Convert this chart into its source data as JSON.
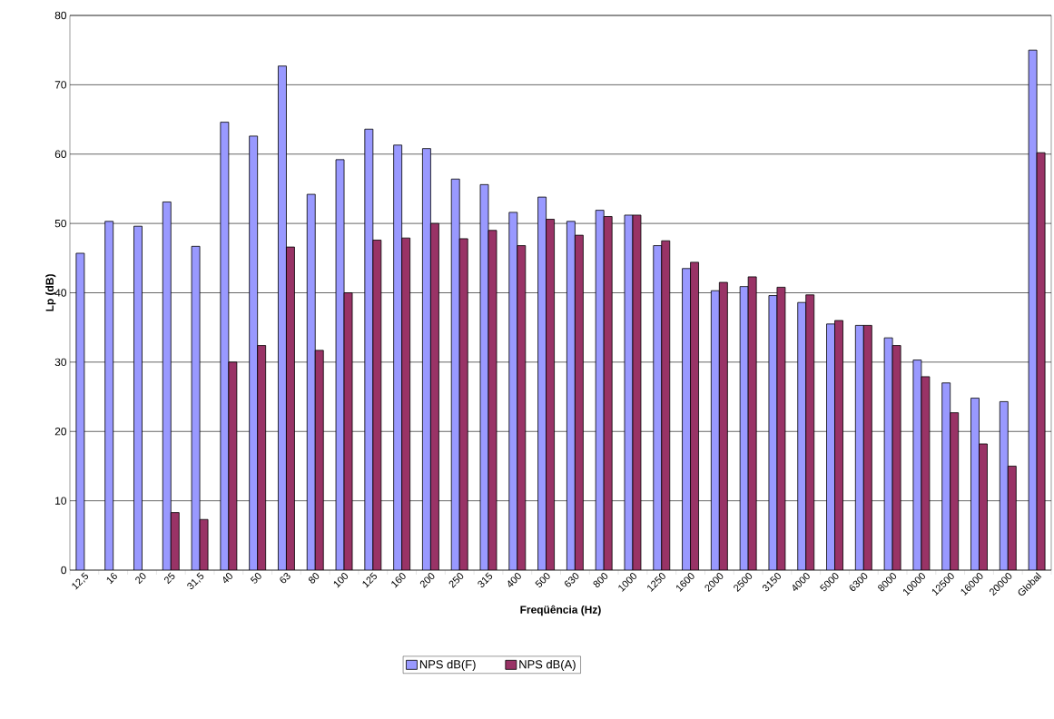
{
  "chart_data": {
    "type": "bar",
    "xlabel": "Freqüência (Hz)",
    "ylabel": "Lp (dB)",
    "categories": [
      "12,5",
      "16",
      "20",
      "25",
      "31,5",
      "40",
      "50",
      "63",
      "80",
      "100",
      "125",
      "160",
      "200",
      "250",
      "315",
      "400",
      "500",
      "630",
      "800",
      "1000",
      "1250",
      "1600",
      "2000",
      "2500",
      "3150",
      "4000",
      "5000",
      "6300",
      "8000",
      "10000",
      "12500",
      "16000",
      "20000",
      "Global"
    ],
    "series": [
      {
        "name": "NPS dB(F)",
        "color": "#9999ff",
        "values": [
          45.7,
          50.3,
          49.6,
          53.1,
          46.7,
          64.6,
          62.6,
          72.7,
          54.2,
          59.2,
          63.6,
          61.3,
          60.8,
          56.4,
          55.6,
          51.6,
          53.8,
          50.3,
          51.9,
          51.2,
          46.8,
          43.5,
          40.3,
          40.9,
          39.6,
          38.6,
          35.5,
          35.3,
          33.5,
          30.3,
          27.0,
          24.8,
          24.3,
          75.0
        ]
      },
      {
        "name": "NPS dB(A)",
        "color": "#993366",
        "values": [
          null,
          null,
          null,
          8.3,
          7.3,
          30.0,
          32.4,
          46.6,
          31.7,
          40.0,
          47.6,
          47.9,
          50.0,
          47.8,
          49.0,
          46.8,
          50.6,
          48.3,
          51.0,
          51.2,
          47.5,
          44.4,
          41.5,
          42.3,
          40.8,
          39.7,
          36.0,
          35.3,
          32.4,
          27.9,
          22.7,
          18.2,
          15.0,
          60.2
        ]
      }
    ],
    "ylim": [
      0,
      80
    ],
    "yticks": [
      0,
      10,
      20,
      30,
      40,
      50,
      60,
      70,
      80
    ],
    "grid": "y",
    "legend": "bottom"
  }
}
